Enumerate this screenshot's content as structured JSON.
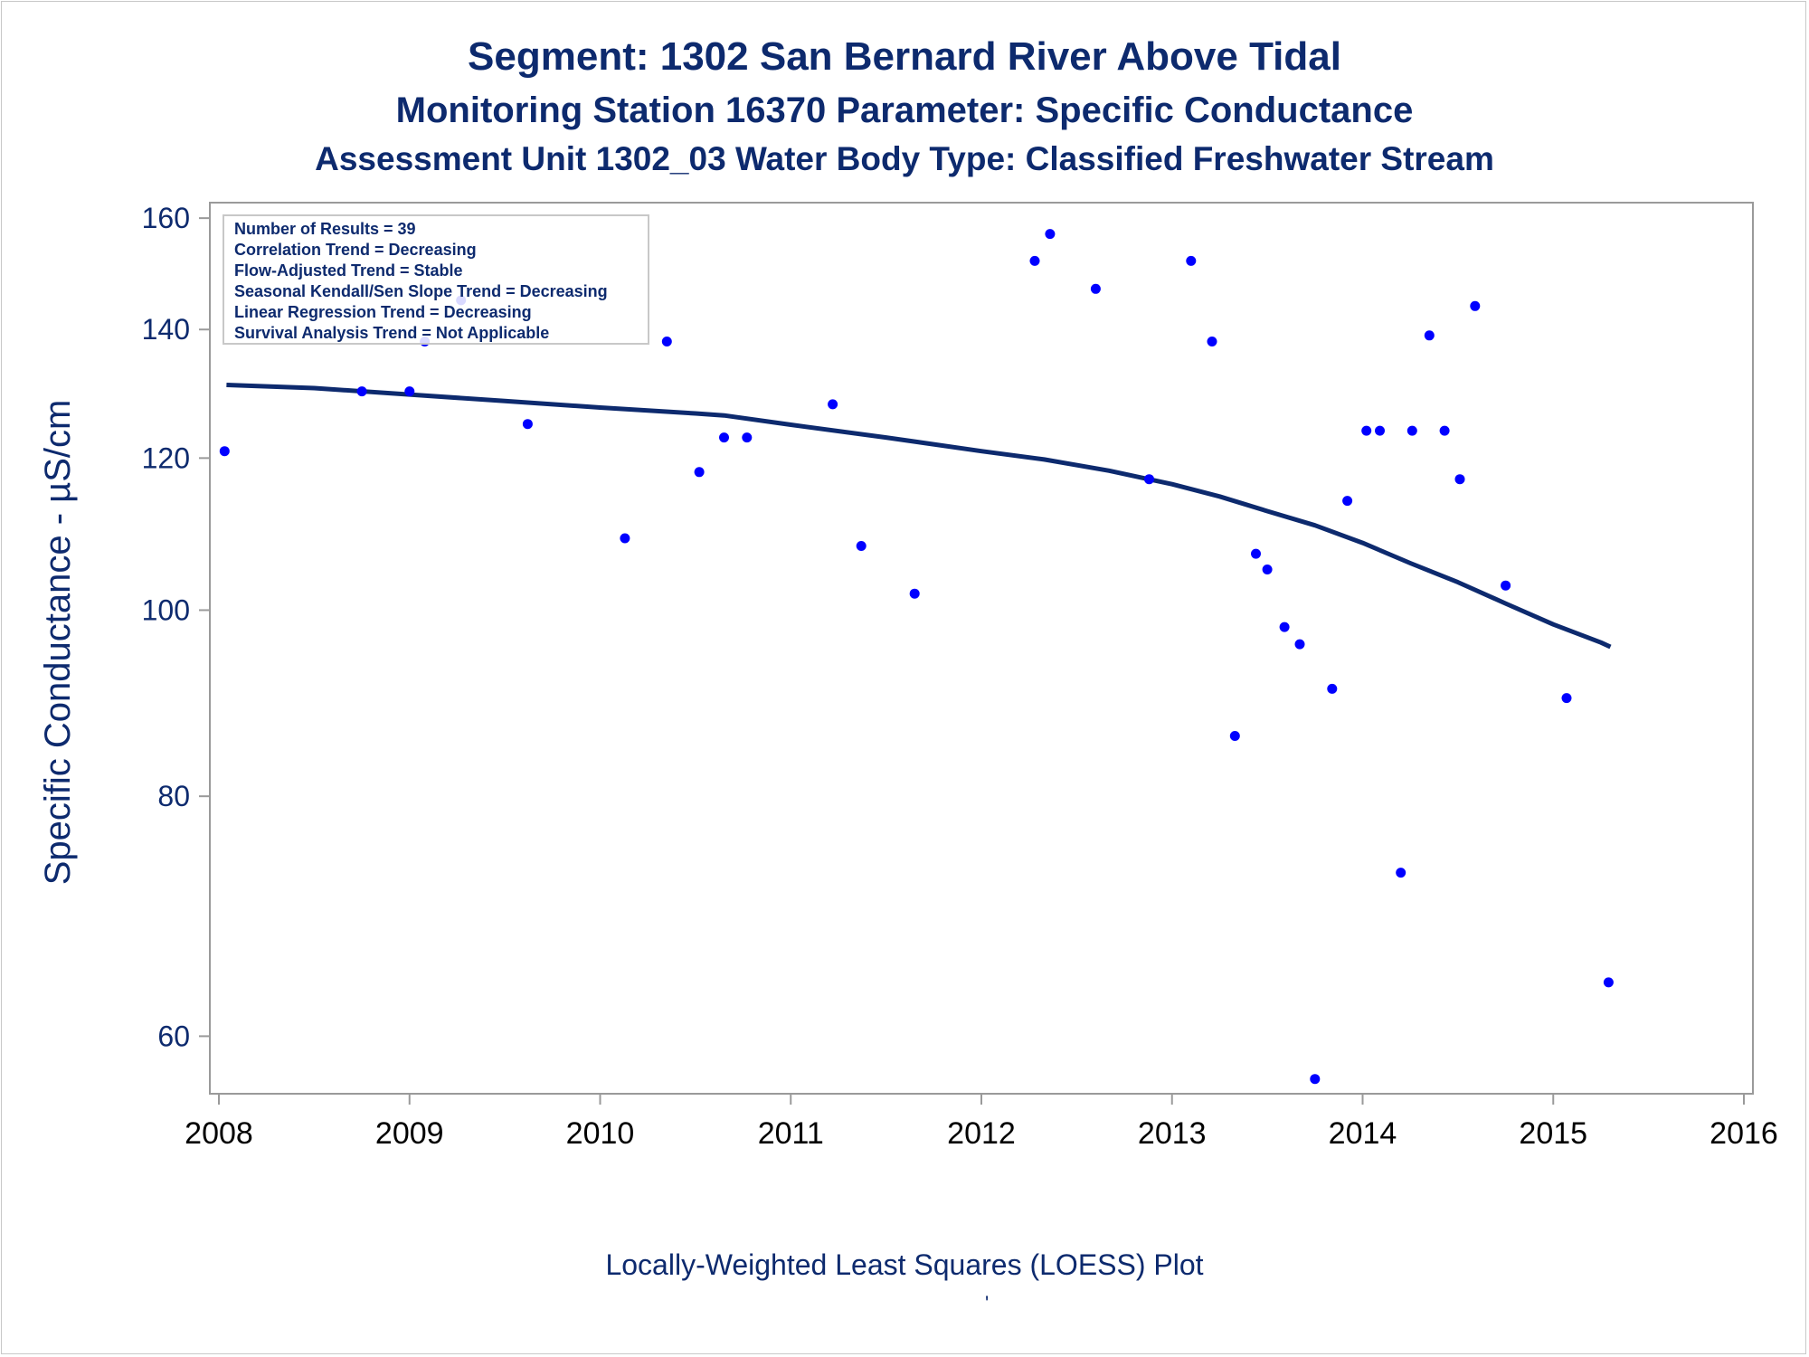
{
  "titles": {
    "line1": "Segment: 1302  San Bernard River Above Tidal",
    "line2": "Monitoring Station 16370 Parameter: Specific Conductance",
    "line3": "Assessment Unit 1302_03   Water Body Type: Classified Freshwater Stream"
  },
  "footnote": "Locally-Weighted Least Squares (LOESS) Plot",
  "footnote_mark": "'",
  "legend_box": [
    "Number of Results = 39",
    "Correlation Trend = Decreasing",
    "Flow-Adjusted Trend = Stable",
    "Seasonal Kendall/Sen Slope Trend = Decreasing",
    "Linear Regression Trend = Decreasing",
    "Survival Analysis Trend = Not Applicable"
  ],
  "colors": {
    "text": "#0d2a6e",
    "points": "#0000ff",
    "loess": "#0d2a6e",
    "frame": "#9a9a9a"
  },
  "chart_data": {
    "type": "scatter",
    "ylabel": "Specific Conductance -  µS/cm",
    "xlabel": "",
    "y_scale": "log",
    "xlim": [
      2008,
      2016
    ],
    "ylim": [
      56,
      163
    ],
    "x_ticks": [
      2008,
      2009,
      2010,
      2011,
      2012,
      2013,
      2014,
      2015,
      2016
    ],
    "y_ticks": [
      60,
      80,
      100,
      120,
      140,
      160
    ],
    "grid": false,
    "points": {
      "name": "Specific Conductance",
      "x": [
        2008.03,
        2008.75,
        2009.0,
        2009.08,
        2009.27,
        2009.62,
        2010.13,
        2010.35,
        2010.52,
        2010.65,
        2010.77,
        2011.22,
        2011.37,
        2011.65,
        2012.28,
        2012.36,
        2012.6,
        2012.88,
        2013.1,
        2013.21,
        2013.33,
        2013.44,
        2013.5,
        2013.59,
        2013.67,
        2013.75,
        2013.84,
        2013.92,
        2014.02,
        2014.09,
        2014.2,
        2014.26,
        2014.35,
        2014.43,
        2014.51,
        2014.59,
        2014.75,
        2015.07,
        2015.29
      ],
      "y": [
        121,
        130,
        130,
        138,
        145,
        125,
        109,
        138,
        118,
        123,
        123,
        128,
        108,
        102,
        152,
        157,
        147,
        117,
        152,
        138,
        86,
        107,
        105,
        98,
        96,
        57,
        91,
        114,
        124,
        124,
        73,
        124,
        139,
        124,
        117,
        144,
        103,
        90,
        64
      ]
    },
    "loess": {
      "name": "LOESS",
      "x": [
        2008.04,
        2008.5,
        2009.0,
        2009.5,
        2010.0,
        2010.5,
        2010.65,
        2011.0,
        2011.5,
        2012.0,
        2012.33,
        2012.67,
        2013.0,
        2013.25,
        2013.5,
        2013.75,
        2014.0,
        2014.25,
        2014.5,
        2014.75,
        2015.0,
        2015.25,
        2015.3
      ],
      "y": [
        131,
        130.5,
        129.5,
        128.5,
        127.5,
        126.6,
        126.3,
        124.9,
        123,
        121,
        119.8,
        118.2,
        116.3,
        114.6,
        112.6,
        110.7,
        108.4,
        105.8,
        103.4,
        100.8,
        98.3,
        96.2,
        95.7
      ]
    }
  }
}
